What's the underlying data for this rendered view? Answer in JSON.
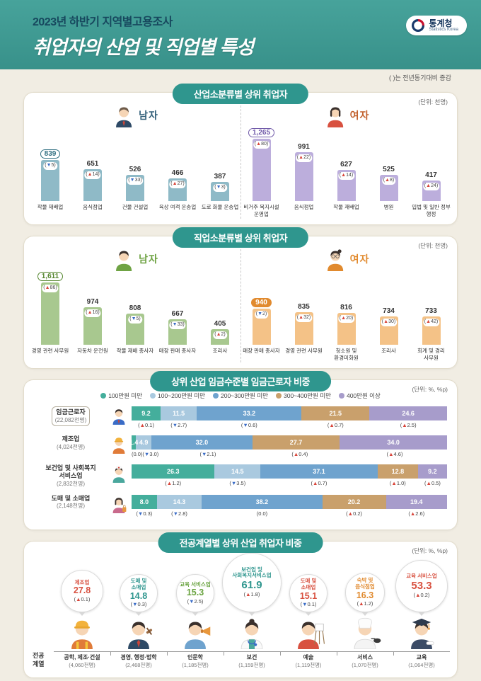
{
  "header": {
    "title_small": "2023년 하반기 지역별고용조사",
    "title_main": "취업자의 산업 및 직업별 특성",
    "logo": {
      "korean": "통계청",
      "english": "Statistics Korea"
    }
  },
  "note": "( )는 전년동기대비 증감",
  "colors": {
    "increase": "#D8453A",
    "decrease": "#3A6CC6",
    "panel_pill": "#2F968E"
  },
  "chart_data": [
    {
      "type": "bar",
      "title": "산업소분류별 상위 취업자",
      "unit": "(단위: 천명)",
      "ylim": [
        0,
        1265
      ],
      "groups": [
        {
          "name": "남자",
          "avatar": "man-office-avatar",
          "bar_color": "#8FBAC7",
          "accent": "#2F6E80",
          "label_color": "#33607A",
          "highlight": "outline",
          "categories": [
            "작물 재배업",
            "음식점업",
            "건물 건설업",
            "육상 여객 운송업",
            "도로 화물 운송업"
          ],
          "values": [
            839,
            651,
            526,
            466,
            387
          ],
          "labels": [
            "839",
            "651",
            "526",
            "466",
            "387"
          ],
          "changes": [
            {
              "t": "5",
              "d": "down"
            },
            {
              "t": "14",
              "d": "up"
            },
            {
              "t": "33",
              "d": "down"
            },
            {
              "t": "27",
              "d": "up"
            },
            {
              "t": "3",
              "d": "down"
            }
          ]
        },
        {
          "name": "여자",
          "avatar": "woman-office-avatar",
          "bar_color": "#BCAEDC",
          "accent": "#6F58A8",
          "label_color": "#C2602C",
          "highlight": "outline",
          "categories": [
            "비거주 복지시설 운영업",
            "음식점업",
            "작물 재배업",
            "병원",
            "입법 및 일반 정부 행정"
          ],
          "values": [
            1265,
            991,
            627,
            525,
            417
          ],
          "labels": [
            "1,265",
            "991",
            "627",
            "525",
            "417"
          ],
          "changes": [
            {
              "t": "80",
              "d": "up"
            },
            {
              "t": "22",
              "d": "up"
            },
            {
              "t": "14",
              "d": "up"
            },
            {
              "t": "8",
              "d": "up"
            },
            {
              "t": "24",
              "d": "up"
            }
          ]
        }
      ]
    },
    {
      "type": "bar",
      "title": "직업소분류별 상위 취업자",
      "unit": "(단위: 천명)",
      "ylim": [
        0,
        1611
      ],
      "groups": [
        {
          "name": "남자",
          "avatar": "man-casual-avatar",
          "bar_color": "#A8C88F",
          "accent": "#55862F",
          "label_color": "#6FA344",
          "highlight": "outline",
          "categories": [
            "경영 관련 사무원",
            "자동차 운전원",
            "작물 재배 종사자",
            "매장 판매 종사자",
            "조리사"
          ],
          "values": [
            1611,
            974,
            808,
            667,
            405
          ],
          "labels": [
            "1,611",
            "974",
            "808",
            "667",
            "405"
          ],
          "changes": [
            {
              "t": "86",
              "d": "up"
            },
            {
              "t": "16",
              "d": "up"
            },
            {
              "t": "5",
              "d": "down"
            },
            {
              "t": "33",
              "d": "down"
            },
            {
              "t": "2",
              "d": "up"
            }
          ]
        },
        {
          "name": "여자",
          "avatar": "woman-bun-avatar",
          "bar_color": "#F4C287",
          "accent": "#E18A2E",
          "label_color": "#E18A2E",
          "highlight": "filled",
          "categories": [
            "매장 판매 종사자",
            "경영 관련 사무원",
            "청소원 및 환경미화원",
            "조리사",
            "회계 및 경리 사무원"
          ],
          "values": [
            940,
            835,
            816,
            734,
            733
          ],
          "labels": [
            "940",
            "835",
            "816",
            "734",
            "733"
          ],
          "changes": [
            {
              "t": "2",
              "d": "down"
            },
            {
              "t": "32",
              "d": "up"
            },
            {
              "t": "20",
              "d": "up"
            },
            {
              "t": "30",
              "d": "up"
            },
            {
              "t": "42",
              "d": "up"
            }
          ]
        }
      ]
    },
    {
      "type": "stacked-bar",
      "title": "상위 산업 임금수준별 임금근로자 비중",
      "unit": "(단위: %, %p)",
      "legend": [
        {
          "label": "100만원 미만",
          "color": "#44AE9C"
        },
        {
          "label": "100~200만원 미만",
          "color": "#A9C9DF"
        },
        {
          "label": "200~300만원 미만",
          "color": "#6FA3CE"
        },
        {
          "label": "300~400만원 미만",
          "color": "#C9A06C"
        },
        {
          "label": "400만원 이상",
          "color": "#A79CCB"
        }
      ],
      "rows": [
        {
          "name": "임금근로자",
          "count": "(22,082천명)",
          "boxed": true,
          "icon": "office-worker-icon",
          "values": [
            "9.2",
            "11.5",
            "33.2",
            "21.5",
            "24.6"
          ],
          "changes": [
            {
              "t": "0.1",
              "d": "up"
            },
            {
              "t": "2.7",
              "d": "down"
            },
            {
              "t": "0.6",
              "d": "down"
            },
            {
              "t": "0.7",
              "d": "up"
            },
            {
              "t": "2.5",
              "d": "up"
            }
          ]
        },
        {
          "name": "제조업",
          "count": "(4,024천명)",
          "boxed": false,
          "icon": "factory-worker-icon",
          "values": [
            "1.4",
            "4.9",
            "32.0",
            "27.7",
            "34.0"
          ],
          "changes": [
            {
              "t": "0.0",
              "d": "zero"
            },
            {
              "t": "3.0",
              "d": "down"
            },
            {
              "t": "2.1",
              "d": "down"
            },
            {
              "t": "0.4",
              "d": "up"
            },
            {
              "t": "4.6",
              "d": "up"
            }
          ]
        },
        {
          "name": "보건업 및 사회복지 서비스업",
          "count": "(2,832천명)",
          "boxed": false,
          "icon": "nurse-icon",
          "values": [
            "26.3",
            "14.5",
            "37.1",
            "12.8",
            "9.2"
          ],
          "changes": [
            {
              "t": "1.2",
              "d": "up"
            },
            {
              "t": "3.5",
              "d": "down"
            },
            {
              "t": "0.7",
              "d": "up"
            },
            {
              "t": "1.0",
              "d": "up"
            },
            {
              "t": "0.5",
              "d": "up"
            }
          ]
        },
        {
          "name": "도매 및 소매업",
          "count": "(2,148천명)",
          "boxed": false,
          "icon": "shopper-icon",
          "values": [
            "8.0",
            "14.3",
            "38.2",
            "20.2",
            "19.4"
          ],
          "changes": [
            {
              "t": "0.3",
              "d": "down"
            },
            {
              "t": "2.8",
              "d": "down"
            },
            {
              "t": "0.0",
              "d": "zero"
            },
            {
              "t": "0.2",
              "d": "up"
            },
            {
              "t": "2.6",
              "d": "up"
            }
          ]
        }
      ]
    },
    {
      "type": "pictogram",
      "title": "전공계열별 상위 산업 취업자 비중",
      "unit": "(단위: %, %p)",
      "axis_label": [
        "전공",
        "계열"
      ],
      "items": [
        {
          "field": "공학, 제조·건설",
          "count": "(4,060천명)",
          "industry": "제조업",
          "share": "27.8",
          "change": {
            "t": "0.1",
            "d": "up"
          },
          "color": "#D85140",
          "size": 60,
          "icon": "construction-worker-icon"
        },
        {
          "field": "경영, 행정·법학",
          "count": "(2,468천명)",
          "industry": "도매 및 소매업",
          "share": "14.8",
          "change": {
            "t": "0.3",
            "d": "down"
          },
          "color": "#2F968E",
          "size": 54,
          "icon": "judge-icon"
        },
        {
          "field": "인문학",
          "count": "(1,185천명)",
          "industry": "교육 서비스업",
          "share": "15.3",
          "change": {
            "t": "2.5",
            "d": "down"
          },
          "color": "#69A33F",
          "size": 54,
          "icon": "announcer-icon"
        },
        {
          "field": "보건",
          "count": "(1,159천명)",
          "industry": "보건업 및 사회복지서비스업",
          "share": "61.9",
          "change": {
            "t": "1.8",
            "d": "up"
          },
          "color": "#2F968E",
          "size": 84,
          "icon": "doctor-icon"
        },
        {
          "field": "예술",
          "count": "(1,119천명)",
          "industry": "도매 및 소매업",
          "share": "15.1",
          "change": {
            "t": "0.1",
            "d": "down"
          },
          "color": "#D85140",
          "size": 54,
          "icon": "painter-icon"
        },
        {
          "field": "서비스",
          "count": "(1,070천명)",
          "industry": "숙박 및 음식점업",
          "share": "16.3",
          "change": {
            "t": "1.2",
            "d": "up"
          },
          "color": "#E18A2E",
          "size": 56,
          "icon": "chef-icon"
        },
        {
          "field": "교육",
          "count": "(1,064천명)",
          "industry": "교육 서비스업",
          "share": "53.3",
          "change": {
            "t": "0.2",
            "d": "up"
          },
          "color": "#D85140",
          "size": 74,
          "icon": "graduate-icon"
        }
      ]
    }
  ]
}
